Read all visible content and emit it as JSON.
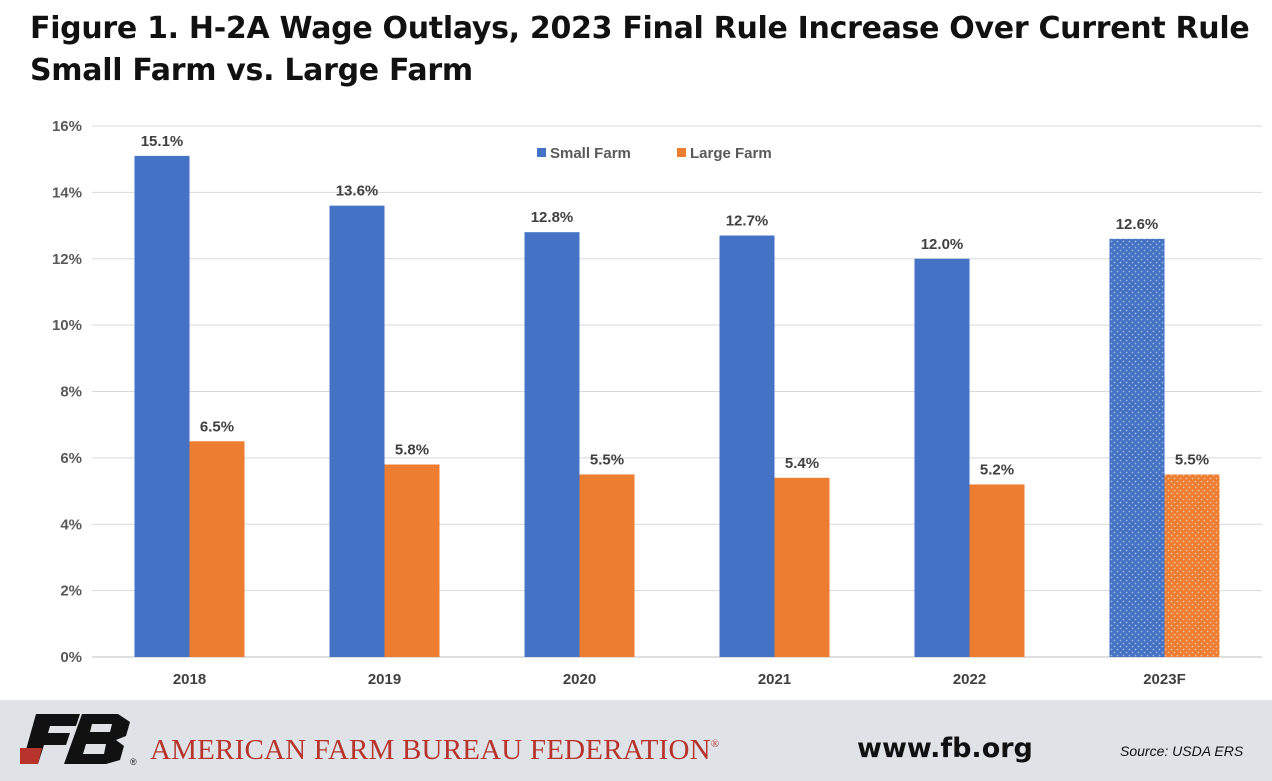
{
  "title": {
    "line1": "Figure 1. H-2A Wage Outlays, 2023 Final Rule Increase Over Current Rule",
    "line2": "Small Farm vs. Large Farm"
  },
  "chart_data": {
    "type": "bar",
    "categories": [
      "2018",
      "2019",
      "2020",
      "2021",
      "2022",
      "2023F"
    ],
    "series": [
      {
        "name": "Small Farm",
        "color": "#4472c4",
        "values": [
          15.1,
          13.6,
          12.8,
          12.7,
          12.0,
          12.6
        ],
        "labels": [
          "15.1%",
          "13.6%",
          "12.8%",
          "12.7%",
          "12.0%",
          "12.6%"
        ]
      },
      {
        "name": "Large Farm",
        "color": "#ed7d31",
        "values": [
          6.5,
          5.8,
          5.5,
          5.4,
          5.2,
          5.5
        ],
        "labels": [
          "6.5%",
          "5.8%",
          "5.5%",
          "5.4%",
          "5.2%",
          "5.5%"
        ]
      }
    ],
    "forecast_categories": [
      "2023F"
    ],
    "forecast_fill": "dotted",
    "yticks": [
      "0%",
      "2%",
      "4%",
      "6%",
      "8%",
      "10%",
      "12%",
      "14%",
      "16%"
    ],
    "ytick_values": [
      0,
      2,
      4,
      6,
      8,
      10,
      12,
      14,
      16
    ],
    "ylim": [
      0,
      16
    ],
    "grid": true,
    "legend_position": "top-center"
  },
  "footer": {
    "org_name": "AMERICAN FARM BUREAU FEDERATION",
    "registered": "®",
    "website": "www.fb.org",
    "source": "Source: USDA ERS",
    "logo_text": "FB",
    "logo_color": "#b7332c"
  }
}
